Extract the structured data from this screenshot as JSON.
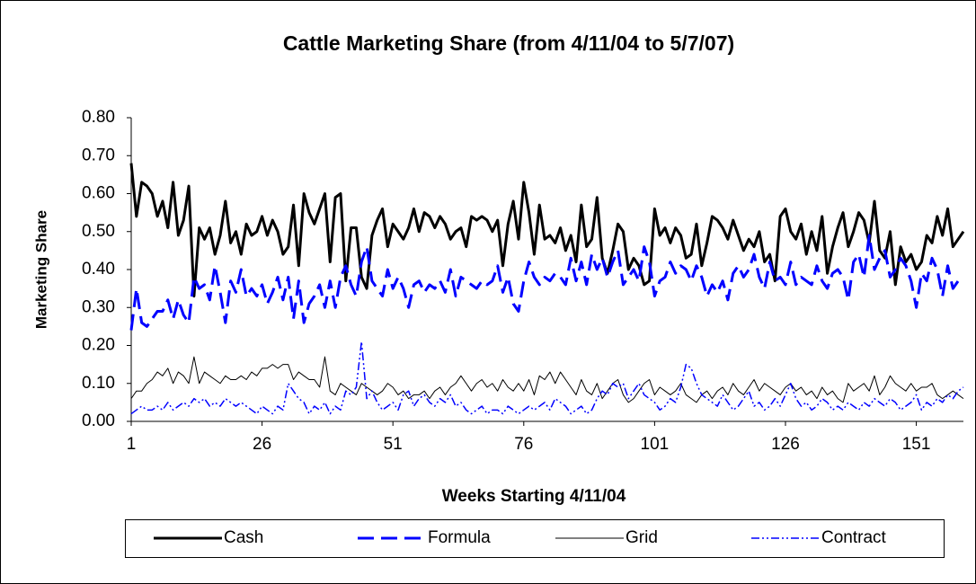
{
  "chart_data": {
    "type": "line",
    "title": "Cattle Marketing Share (from 4/11/04 to 5/7/07)",
    "xlabel": "Weeks Starting 4/11/04",
    "ylabel": "Marketing Share",
    "x": [
      1,
      2,
      3,
      4,
      5,
      6,
      7,
      8,
      9,
      10,
      11,
      12,
      13,
      14,
      15,
      16,
      17,
      18,
      19,
      20,
      21,
      22,
      23,
      24,
      25,
      26,
      27,
      28,
      29,
      30,
      31,
      32,
      33,
      34,
      35,
      36,
      37,
      38,
      39,
      40,
      41,
      42,
      43,
      44,
      45,
      46,
      47,
      48,
      49,
      50,
      51,
      52,
      53,
      54,
      55,
      56,
      57,
      58,
      59,
      60,
      61,
      62,
      63,
      64,
      65,
      66,
      67,
      68,
      69,
      70,
      71,
      72,
      73,
      74,
      75,
      76,
      77,
      78,
      79,
      80,
      81,
      82,
      83,
      84,
      85,
      86,
      87,
      88,
      89,
      90,
      91,
      92,
      93,
      94,
      95,
      96,
      97,
      98,
      99,
      100,
      101,
      102,
      103,
      104,
      105,
      106,
      107,
      108,
      109,
      110,
      111,
      112,
      113,
      114,
      115,
      116,
      117,
      118,
      119,
      120,
      121,
      122,
      123,
      124,
      125,
      126,
      127,
      128,
      129,
      130,
      131,
      132,
      133,
      134,
      135,
      136,
      137,
      138,
      139,
      140,
      141,
      142,
      143,
      144,
      145,
      146,
      147,
      148,
      149,
      150,
      151,
      152,
      153,
      154,
      155,
      156,
      157,
      158,
      159,
      160
    ],
    "xlim": [
      1,
      160
    ],
    "xticks": [
      1,
      26,
      51,
      76,
      101,
      126,
      151
    ],
    "ylim": [
      0,
      0.8
    ],
    "yticks": [
      {
        "value": 0,
        "label": "0.00"
      },
      {
        "value": 0.1,
        "label": "0.10"
      },
      {
        "value": 0.2,
        "label": "0.20"
      },
      {
        "value": 0.3,
        "label": "0.30"
      },
      {
        "value": 0.4,
        "label": "0.40"
      },
      {
        "value": 0.5,
        "label": "0.50"
      },
      {
        "value": 0.6,
        "label": "0.60"
      },
      {
        "value": 0.7,
        "label": "0.70"
      },
      {
        "value": 0.8,
        "label": "0.80"
      }
    ],
    "grid": false,
    "legend": "bottom",
    "series": [
      {
        "name": "Cash",
        "color": "#000000",
        "width": 3,
        "dash": "solid",
        "values": [
          0.68,
          0.54,
          0.63,
          0.62,
          0.6,
          0.54,
          0.58,
          0.51,
          0.63,
          0.49,
          0.53,
          0.62,
          0.33,
          0.51,
          0.48,
          0.51,
          0.44,
          0.49,
          0.58,
          0.47,
          0.5,
          0.44,
          0.52,
          0.49,
          0.5,
          0.54,
          0.49,
          0.53,
          0.5,
          0.44,
          0.46,
          0.57,
          0.41,
          0.6,
          0.55,
          0.52,
          0.56,
          0.6,
          0.42,
          0.59,
          0.6,
          0.37,
          0.51,
          0.51,
          0.38,
          0.35,
          0.49,
          0.53,
          0.56,
          0.46,
          0.52,
          0.5,
          0.48,
          0.51,
          0.56,
          0.5,
          0.55,
          0.54,
          0.51,
          0.54,
          0.52,
          0.48,
          0.5,
          0.51,
          0.46,
          0.54,
          0.53,
          0.54,
          0.53,
          0.5,
          0.53,
          0.41,
          0.52,
          0.58,
          0.48,
          0.63,
          0.55,
          0.44,
          0.57,
          0.48,
          0.49,
          0.47,
          0.51,
          0.45,
          0.49,
          0.42,
          0.57,
          0.46,
          0.48,
          0.59,
          0.43,
          0.39,
          0.45,
          0.52,
          0.5,
          0.4,
          0.43,
          0.41,
          0.36,
          0.37,
          0.56,
          0.49,
          0.51,
          0.47,
          0.51,
          0.49,
          0.43,
          0.44,
          0.52,
          0.41,
          0.47,
          0.54,
          0.53,
          0.51,
          0.48,
          0.53,
          0.49,
          0.45,
          0.48,
          0.46,
          0.5,
          0.42,
          0.44,
          0.37,
          0.54,
          0.56,
          0.5,
          0.48,
          0.52,
          0.44,
          0.5,
          0.45,
          0.54,
          0.39,
          0.46,
          0.51,
          0.55,
          0.46,
          0.5,
          0.55,
          0.53,
          0.47,
          0.58,
          0.45,
          0.43,
          0.5,
          0.36,
          0.46,
          0.42,
          0.44,
          0.4,
          0.42,
          0.49,
          0.47,
          0.54,
          0.49,
          0.56,
          0.46,
          0.48,
          0.5
        ]
      },
      {
        "name": "Formula",
        "color": "#0000ff",
        "width": 3,
        "dash": "dash",
        "values": [
          0.24,
          0.35,
          0.26,
          0.25,
          0.27,
          0.29,
          0.29,
          0.32,
          0.27,
          0.32,
          0.28,
          0.26,
          0.38,
          0.35,
          0.36,
          0.32,
          0.41,
          0.34,
          0.26,
          0.37,
          0.34,
          0.4,
          0.33,
          0.35,
          0.33,
          0.36,
          0.31,
          0.34,
          0.38,
          0.32,
          0.38,
          0.27,
          0.37,
          0.26,
          0.31,
          0.33,
          0.36,
          0.3,
          0.37,
          0.3,
          0.38,
          0.41,
          0.36,
          0.33,
          0.42,
          0.46,
          0.37,
          0.35,
          0.33,
          0.4,
          0.35,
          0.38,
          0.35,
          0.3,
          0.36,
          0.37,
          0.34,
          0.36,
          0.35,
          0.37,
          0.34,
          0.4,
          0.33,
          0.38,
          0.37,
          0.36,
          0.35,
          0.37,
          0.36,
          0.37,
          0.41,
          0.34,
          0.38,
          0.31,
          0.29,
          0.37,
          0.42,
          0.38,
          0.36,
          0.38,
          0.37,
          0.39,
          0.38,
          0.36,
          0.43,
          0.37,
          0.42,
          0.36,
          0.44,
          0.4,
          0.43,
          0.38,
          0.42,
          0.45,
          0.36,
          0.38,
          0.4,
          0.37,
          0.46,
          0.42,
          0.33,
          0.37,
          0.38,
          0.42,
          0.39,
          0.41,
          0.4,
          0.37,
          0.41,
          0.38,
          0.33,
          0.36,
          0.34,
          0.37,
          0.32,
          0.39,
          0.41,
          0.38,
          0.4,
          0.44,
          0.38,
          0.35,
          0.42,
          0.37,
          0.38,
          0.36,
          0.42,
          0.36,
          0.38,
          0.37,
          0.36,
          0.41,
          0.37,
          0.35,
          0.39,
          0.4,
          0.38,
          0.32,
          0.42,
          0.44,
          0.38,
          0.49,
          0.4,
          0.43,
          0.45,
          0.38,
          0.4,
          0.43,
          0.41,
          0.37,
          0.3,
          0.39,
          0.37,
          0.43,
          0.4,
          0.33,
          0.41,
          0.35,
          0.37,
          0.36
        ]
      },
      {
        "name": "Grid",
        "color": "#000000",
        "width": 1,
        "dash": "solid",
        "values": [
          0.06,
          0.08,
          0.08,
          0.1,
          0.11,
          0.13,
          0.12,
          0.14,
          0.1,
          0.13,
          0.12,
          0.1,
          0.17,
          0.1,
          0.13,
          0.12,
          0.11,
          0.1,
          0.12,
          0.11,
          0.11,
          0.12,
          0.11,
          0.13,
          0.12,
          0.14,
          0.14,
          0.15,
          0.14,
          0.15,
          0.15,
          0.11,
          0.13,
          0.12,
          0.11,
          0.11,
          0.09,
          0.17,
          0.08,
          0.07,
          0.1,
          0.09,
          0.08,
          0.07,
          0.1,
          0.09,
          0.08,
          0.07,
          0.08,
          0.1,
          0.09,
          0.07,
          0.08,
          0.06,
          0.07,
          0.07,
          0.08,
          0.06,
          0.08,
          0.09,
          0.07,
          0.09,
          0.1,
          0.12,
          0.1,
          0.08,
          0.1,
          0.11,
          0.09,
          0.1,
          0.08,
          0.11,
          0.09,
          0.08,
          0.1,
          0.08,
          0.11,
          0.07,
          0.12,
          0.11,
          0.13,
          0.1,
          0.13,
          0.11,
          0.09,
          0.07,
          0.11,
          0.08,
          0.07,
          0.1,
          0.06,
          0.08,
          0.1,
          0.11,
          0.07,
          0.05,
          0.06,
          0.08,
          0.1,
          0.11,
          0.07,
          0.09,
          0.08,
          0.07,
          0.08,
          0.1,
          0.07,
          0.06,
          0.05,
          0.07,
          0.08,
          0.06,
          0.08,
          0.09,
          0.07,
          0.1,
          0.08,
          0.07,
          0.09,
          0.11,
          0.08,
          0.1,
          0.09,
          0.08,
          0.07,
          0.09,
          0.1,
          0.08,
          0.09,
          0.07,
          0.08,
          0.06,
          0.09,
          0.07,
          0.08,
          0.06,
          0.05,
          0.1,
          0.08,
          0.09,
          0.1,
          0.08,
          0.12,
          0.07,
          0.09,
          0.12,
          0.1,
          0.09,
          0.08,
          0.1,
          0.08,
          0.09,
          0.09,
          0.1,
          0.07,
          0.06,
          0.07,
          0.08,
          0.07,
          0.06
        ]
      },
      {
        "name": "Contract",
        "color": "#0000ff",
        "width": 1.5,
        "dash": "dashdotdot",
        "values": [
          0.02,
          0.03,
          0.04,
          0.03,
          0.03,
          0.04,
          0.03,
          0.05,
          0.03,
          0.04,
          0.05,
          0.04,
          0.06,
          0.05,
          0.06,
          0.04,
          0.05,
          0.04,
          0.06,
          0.05,
          0.04,
          0.05,
          0.04,
          0.03,
          0.02,
          0.04,
          0.03,
          0.02,
          0.04,
          0.03,
          0.1,
          0.08,
          0.06,
          0.05,
          0.02,
          0.04,
          0.03,
          0.05,
          0.02,
          0.04,
          0.03,
          0.08,
          0.07,
          0.09,
          0.21,
          0.06,
          0.08,
          0.05,
          0.03,
          0.04,
          0.05,
          0.03,
          0.07,
          0.08,
          0.04,
          0.06,
          0.07,
          0.05,
          0.04,
          0.06,
          0.05,
          0.07,
          0.04,
          0.05,
          0.03,
          0.02,
          0.03,
          0.04,
          0.02,
          0.03,
          0.03,
          0.02,
          0.04,
          0.03,
          0.02,
          0.03,
          0.04,
          0.03,
          0.04,
          0.05,
          0.03,
          0.06,
          0.05,
          0.04,
          0.02,
          0.03,
          0.04,
          0.02,
          0.03,
          0.06,
          0.08,
          0.07,
          0.1,
          0.09,
          0.1,
          0.06,
          0.08,
          0.1,
          0.07,
          0.06,
          0.05,
          0.03,
          0.04,
          0.06,
          0.05,
          0.09,
          0.15,
          0.14,
          0.1,
          0.07,
          0.06,
          0.05,
          0.04,
          0.07,
          0.05,
          0.03,
          0.04,
          0.06,
          0.08,
          0.04,
          0.05,
          0.03,
          0.04,
          0.06,
          0.04,
          0.07,
          0.1,
          0.06,
          0.04,
          0.05,
          0.03,
          0.04,
          0.06,
          0.05,
          0.03,
          0.04,
          0.03,
          0.05,
          0.04,
          0.03,
          0.05,
          0.04,
          0.06,
          0.05,
          0.04,
          0.06,
          0.05,
          0.03,
          0.04,
          0.05,
          0.07,
          0.03,
          0.05,
          0.04,
          0.06,
          0.05,
          0.07,
          0.06,
          0.08,
          0.09
        ]
      }
    ]
  }
}
